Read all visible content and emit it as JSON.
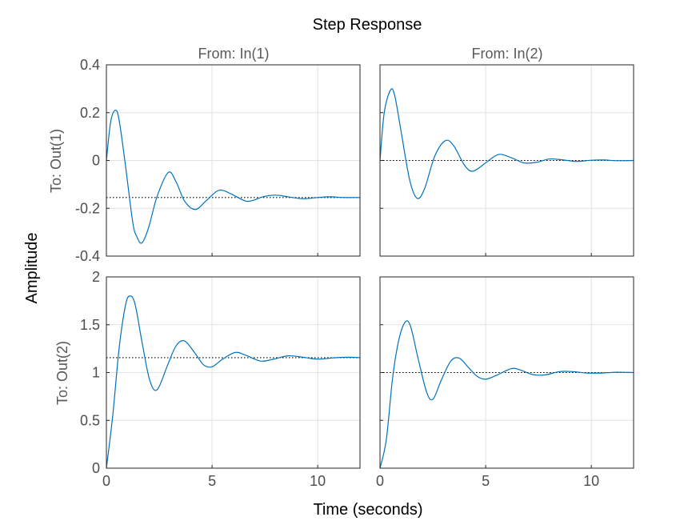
{
  "chart_data": {
    "type": "line",
    "title": "Step Response",
    "xlabel": "Time (seconds)",
    "ylabel": "Amplitude",
    "grid": true,
    "xlim": [
      0,
      12
    ],
    "xticks": [
      0,
      5,
      10
    ],
    "column_titles": [
      "From: In(1)",
      "From: In(2)"
    ],
    "row_titles": [
      "To: Out(1)",
      "To: Out(2)"
    ],
    "rows": [
      {
        "ylim": [
          -0.4,
          0.4
        ],
        "yticks": [
          -0.4,
          -0.2,
          0,
          0.2,
          0.4
        ],
        "ytick_labels": [
          "-0.4",
          "-0.2",
          "0",
          "0.2",
          "0.4"
        ]
      },
      {
        "ylim": [
          0,
          2
        ],
        "yticks": [
          0,
          0.5,
          1,
          1.5,
          2
        ],
        "ytick_labels": [
          "0",
          "0.5",
          "1",
          "1.5",
          "2"
        ]
      }
    ],
    "panels": [
      {
        "row": 0,
        "col": 0,
        "steady_state": -0.155,
        "x": [
          0,
          0.2,
          0.42,
          0.6,
          0.9,
          1.25,
          1.45,
          1.68,
          2.0,
          2.4,
          2.93,
          3.3,
          3.7,
          4.2,
          4.7,
          5.2,
          5.5,
          5.9,
          6.6,
          7.0,
          7.4,
          8.0,
          8.6,
          9.3,
          10.0,
          10.6,
          11.2,
          12.0
        ],
        "y": [
          0,
          0.16,
          0.21,
          0.17,
          -0.02,
          -0.26,
          -0.32,
          -0.345,
          -0.28,
          -0.15,
          -0.05,
          -0.09,
          -0.17,
          -0.205,
          -0.17,
          -0.13,
          -0.125,
          -0.14,
          -0.17,
          -0.165,
          -0.152,
          -0.145,
          -0.152,
          -0.16,
          -0.155,
          -0.152,
          -0.155,
          -0.155
        ]
      },
      {
        "row": 0,
        "col": 1,
        "steady_state": 0,
        "x": [
          0,
          0.2,
          0.5,
          0.7,
          1.0,
          1.4,
          1.75,
          2.1,
          2.6,
          3.1,
          3.5,
          4.0,
          4.4,
          5.0,
          5.6,
          6.2,
          6.8,
          7.4,
          8.0,
          8.6,
          9.3,
          10.0,
          10.6,
          11.2,
          12.0
        ],
        "y": [
          0,
          0.2,
          0.295,
          0.27,
          0.12,
          -0.08,
          -0.158,
          -0.12,
          0.02,
          0.083,
          0.06,
          -0.02,
          -0.045,
          -0.01,
          0.025,
          0.012,
          -0.01,
          -0.008,
          0.006,
          0.003,
          -0.004,
          0.001,
          0.002,
          -0.001,
          0
        ]
      },
      {
        "row": 1,
        "col": 0,
        "steady_state": 1.155,
        "x": [
          0,
          0.3,
          0.6,
          0.9,
          1.1,
          1.35,
          1.7,
          2.05,
          2.4,
          2.9,
          3.3,
          3.7,
          4.2,
          4.6,
          5.0,
          5.5,
          6.1,
          6.6,
          7.3,
          7.9,
          8.6,
          9.3,
          10.0,
          10.8,
          11.5,
          12.0
        ],
        "y": [
          0,
          0.55,
          1.25,
          1.7,
          1.8,
          1.72,
          1.3,
          0.92,
          0.82,
          1.08,
          1.28,
          1.33,
          1.2,
          1.08,
          1.06,
          1.14,
          1.21,
          1.18,
          1.12,
          1.14,
          1.175,
          1.16,
          1.14,
          1.155,
          1.16,
          1.155
        ]
      },
      {
        "row": 1,
        "col": 1,
        "steady_state": 1,
        "x": [
          0,
          0.3,
          0.6,
          0.9,
          1.2,
          1.45,
          1.8,
          2.2,
          2.5,
          2.9,
          3.35,
          3.75,
          4.2,
          4.6,
          5.0,
          5.5,
          6.2,
          6.6,
          7.2,
          7.8,
          8.5,
          9.1,
          9.8,
          10.5,
          11.2,
          12.0
        ],
        "y": [
          0,
          0.3,
          0.95,
          1.35,
          1.53,
          1.48,
          1.15,
          0.8,
          0.72,
          0.92,
          1.12,
          1.15,
          1.05,
          0.96,
          0.93,
          0.97,
          1.04,
          1.03,
          0.98,
          0.975,
          1.01,
          1.01,
          0.995,
          0.995,
          1.003,
          1.0
        ]
      }
    ]
  }
}
